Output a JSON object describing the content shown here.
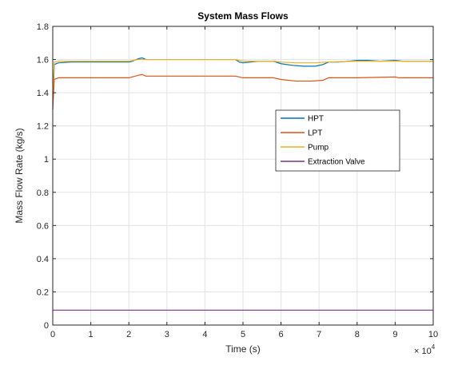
{
  "chart_data": {
    "type": "line",
    "title": "System Mass Flows",
    "xlabel": "Time (s)",
    "ylabel": "Mass Flow Rate (kg/s)",
    "x_exponent_label": "× 10",
    "x_exponent": "4",
    "xlim": [
      0,
      100000
    ],
    "ylim": [
      0,
      1.8
    ],
    "x_ticks": [
      0,
      10000,
      20000,
      30000,
      40000,
      50000,
      60000,
      70000,
      80000,
      90000,
      100000
    ],
    "x_tick_labels": [
      "0",
      "1",
      "2",
      "3",
      "4",
      "5",
      "6",
      "7",
      "8",
      "9",
      "10"
    ],
    "y_ticks": [
      0,
      0.2,
      0.4,
      0.6,
      0.8,
      1.0,
      1.2,
      1.4,
      1.6,
      1.8
    ],
    "y_tick_labels": [
      "0",
      "0.2",
      "0.4",
      "0.6",
      "0.8",
      "1",
      "1.2",
      "1.4",
      "1.6",
      "1.8"
    ],
    "grid": true,
    "legend_position": "right-upper",
    "series": [
      {
        "name": "HPT",
        "color": "#0072BD",
        "points": [
          [
            0,
            1.3
          ],
          [
            400,
            1.57
          ],
          [
            1500,
            1.58
          ],
          [
            5000,
            1.585
          ],
          [
            20000,
            1.585
          ],
          [
            21000,
            1.59
          ],
          [
            22500,
            1.605
          ],
          [
            23500,
            1.61
          ],
          [
            24500,
            1.6
          ],
          [
            30000,
            1.6
          ],
          [
            48000,
            1.6
          ],
          [
            49000,
            1.585
          ],
          [
            50000,
            1.58
          ],
          [
            52000,
            1.585
          ],
          [
            54000,
            1.59
          ],
          [
            58000,
            1.59
          ],
          [
            60000,
            1.575
          ],
          [
            63000,
            1.565
          ],
          [
            66000,
            1.56
          ],
          [
            69000,
            1.56
          ],
          [
            71000,
            1.57
          ],
          [
            72500,
            1.585
          ],
          [
            75000,
            1.585
          ],
          [
            78000,
            1.59
          ],
          [
            80000,
            1.595
          ],
          [
            83000,
            1.595
          ],
          [
            86000,
            1.59
          ],
          [
            90000,
            1.595
          ],
          [
            92000,
            1.59
          ],
          [
            100000,
            1.59
          ]
        ]
      },
      {
        "name": "LPT",
        "color": "#D95319",
        "points": [
          [
            0,
            1.3
          ],
          [
            400,
            1.48
          ],
          [
            1500,
            1.49
          ],
          [
            5000,
            1.49
          ],
          [
            20000,
            1.49
          ],
          [
            22500,
            1.505
          ],
          [
            23500,
            1.51
          ],
          [
            24500,
            1.5
          ],
          [
            30000,
            1.5
          ],
          [
            48000,
            1.5
          ],
          [
            50000,
            1.49
          ],
          [
            58000,
            1.49
          ],
          [
            60000,
            1.48
          ],
          [
            64000,
            1.47
          ],
          [
            68000,
            1.47
          ],
          [
            71000,
            1.475
          ],
          [
            72500,
            1.49
          ],
          [
            80000,
            1.49
          ],
          [
            90000,
            1.495
          ],
          [
            91000,
            1.49
          ],
          [
            100000,
            1.49
          ]
        ]
      },
      {
        "name": "Pump",
        "color": "#EDB120",
        "points": [
          [
            0,
            1.4
          ],
          [
            400,
            1.585
          ],
          [
            1500,
            1.59
          ],
          [
            20000,
            1.59
          ],
          [
            22500,
            1.6
          ],
          [
            30000,
            1.6
          ],
          [
            48000,
            1.6
          ],
          [
            50000,
            1.59
          ],
          [
            58000,
            1.59
          ],
          [
            60000,
            1.585
          ],
          [
            64000,
            1.58
          ],
          [
            69000,
            1.58
          ],
          [
            72000,
            1.585
          ],
          [
            80000,
            1.59
          ],
          [
            100000,
            1.59
          ]
        ]
      },
      {
        "name": "Extraction Valve",
        "color": "#7E2F8E",
        "points": [
          [
            0,
            0.09
          ],
          [
            100000,
            0.09
          ]
        ]
      }
    ]
  }
}
